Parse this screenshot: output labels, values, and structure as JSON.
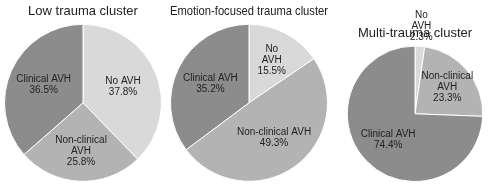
{
  "chart_data": [
    {
      "type": "pie",
      "title": "Low trauma cluster",
      "categories": [
        "No AVH",
        "Non-clinical AVH",
        "Clinical AVH"
      ],
      "values": [
        37.8,
        25.8,
        36.5
      ],
      "value_labels": [
        "37.8%",
        "25.8%",
        "36.5%"
      ],
      "colors": [
        "#d9d9d9",
        "#b3b3b3",
        "#8c8c8c"
      ],
      "data_labels": true
    },
    {
      "type": "pie",
      "title": "Emotion-focused trauma cluster",
      "categories": [
        "No AVH",
        "Non-clinical AVH",
        "Clinical AVH"
      ],
      "values": [
        15.5,
        49.3,
        35.2
      ],
      "value_labels": [
        "15.5%",
        "49.3%",
        "35.2%"
      ],
      "colors": [
        "#d9d9d9",
        "#b3b3b3",
        "#8c8c8c"
      ],
      "data_labels": true
    },
    {
      "type": "pie",
      "title": "Multi-trauma cluster",
      "categories": [
        "No AVH",
        "Non-clinical AVH",
        "Clinical AVH"
      ],
      "values": [
        2.3,
        23.3,
        74.4
      ],
      "value_labels": [
        "2.3%",
        "23.3%",
        "74.4%"
      ],
      "colors": [
        "#d9d9d9",
        "#b3b3b3",
        "#8c8c8c"
      ],
      "data_labels": true
    }
  ]
}
